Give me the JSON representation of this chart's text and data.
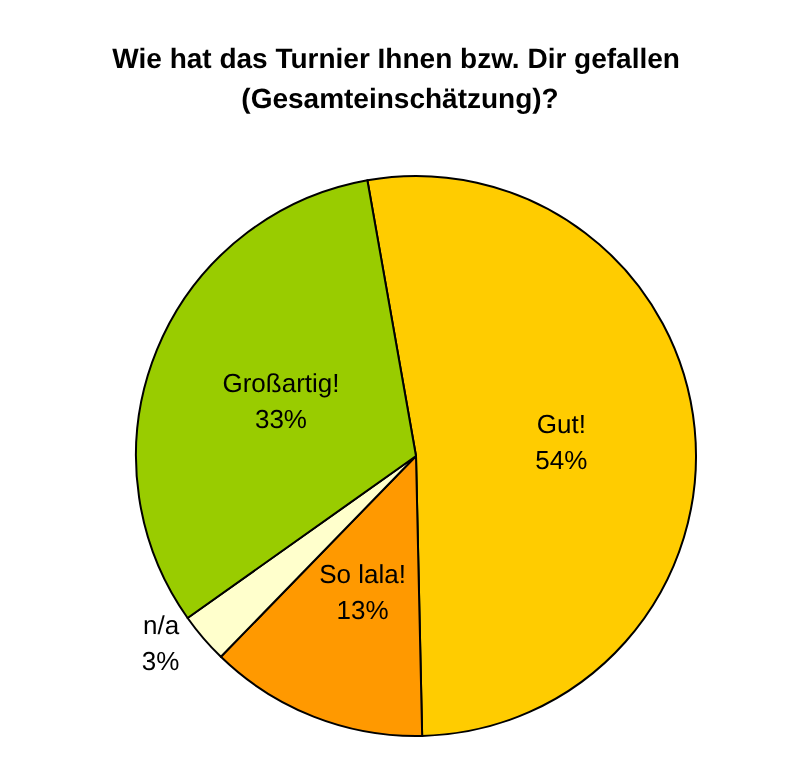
{
  "chart_data": {
    "type": "pie",
    "title": "Wie hat das Turnier Ihnen bzw. Dir gefallen (Gesamteinschätzung)?",
    "categories": [
      "Gut!",
      "So lala!",
      "n/a",
      "Großartig!"
    ],
    "values": [
      54,
      13,
      3,
      33
    ],
    "value_labels": [
      "54%",
      "13%",
      "3%",
      "33%"
    ],
    "colors": [
      "#ffcc00",
      "#ff9900",
      "#ffffcc",
      "#99cc00"
    ],
    "legend": false
  }
}
